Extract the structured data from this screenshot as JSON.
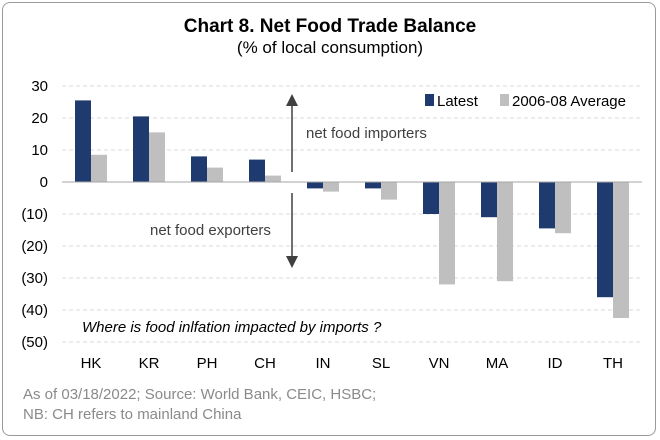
{
  "chart_data": {
    "type": "bar",
    "title": "Chart 8. Net Food Trade Balance",
    "subtitle": "(% of local consumption)",
    "categories": [
      "HK",
      "KR",
      "PH",
      "CH",
      "IN",
      "SL",
      "VN",
      "MA",
      "ID",
      "TH"
    ],
    "series": [
      {
        "name": "Latest",
        "color": "#1f3a6e",
        "values": [
          25.5,
          20.5,
          8,
          7,
          -2,
          -2,
          -10,
          -11,
          -14.5,
          -36
        ]
      },
      {
        "name": "2006-08 Average",
        "color": "#bfbfbf",
        "values": [
          8.5,
          15.5,
          4.5,
          2,
          -3,
          -5.5,
          -32,
          -31,
          -16,
          -42.5
        ]
      }
    ],
    "ylim": [
      -50,
      30
    ],
    "yticks": [
      30,
      20,
      10,
      0,
      -10,
      -20,
      -30,
      -40,
      -50
    ],
    "ytick_labels": [
      "30",
      "20",
      "10",
      "0",
      "(10)",
      "(20)",
      "(30)",
      "(40)",
      "(50)"
    ],
    "grid": true,
    "legend_position": "top-right",
    "annotations": {
      "importers": "net food importers",
      "exporters": "net food exporters",
      "question": "Where is food inlfation impacted by imports ?"
    }
  },
  "footer": {
    "line1": "As of 03/18/2022; Source: World Bank, CEIC, HSBC;",
    "line2": "NB: CH refers to mainland China"
  }
}
